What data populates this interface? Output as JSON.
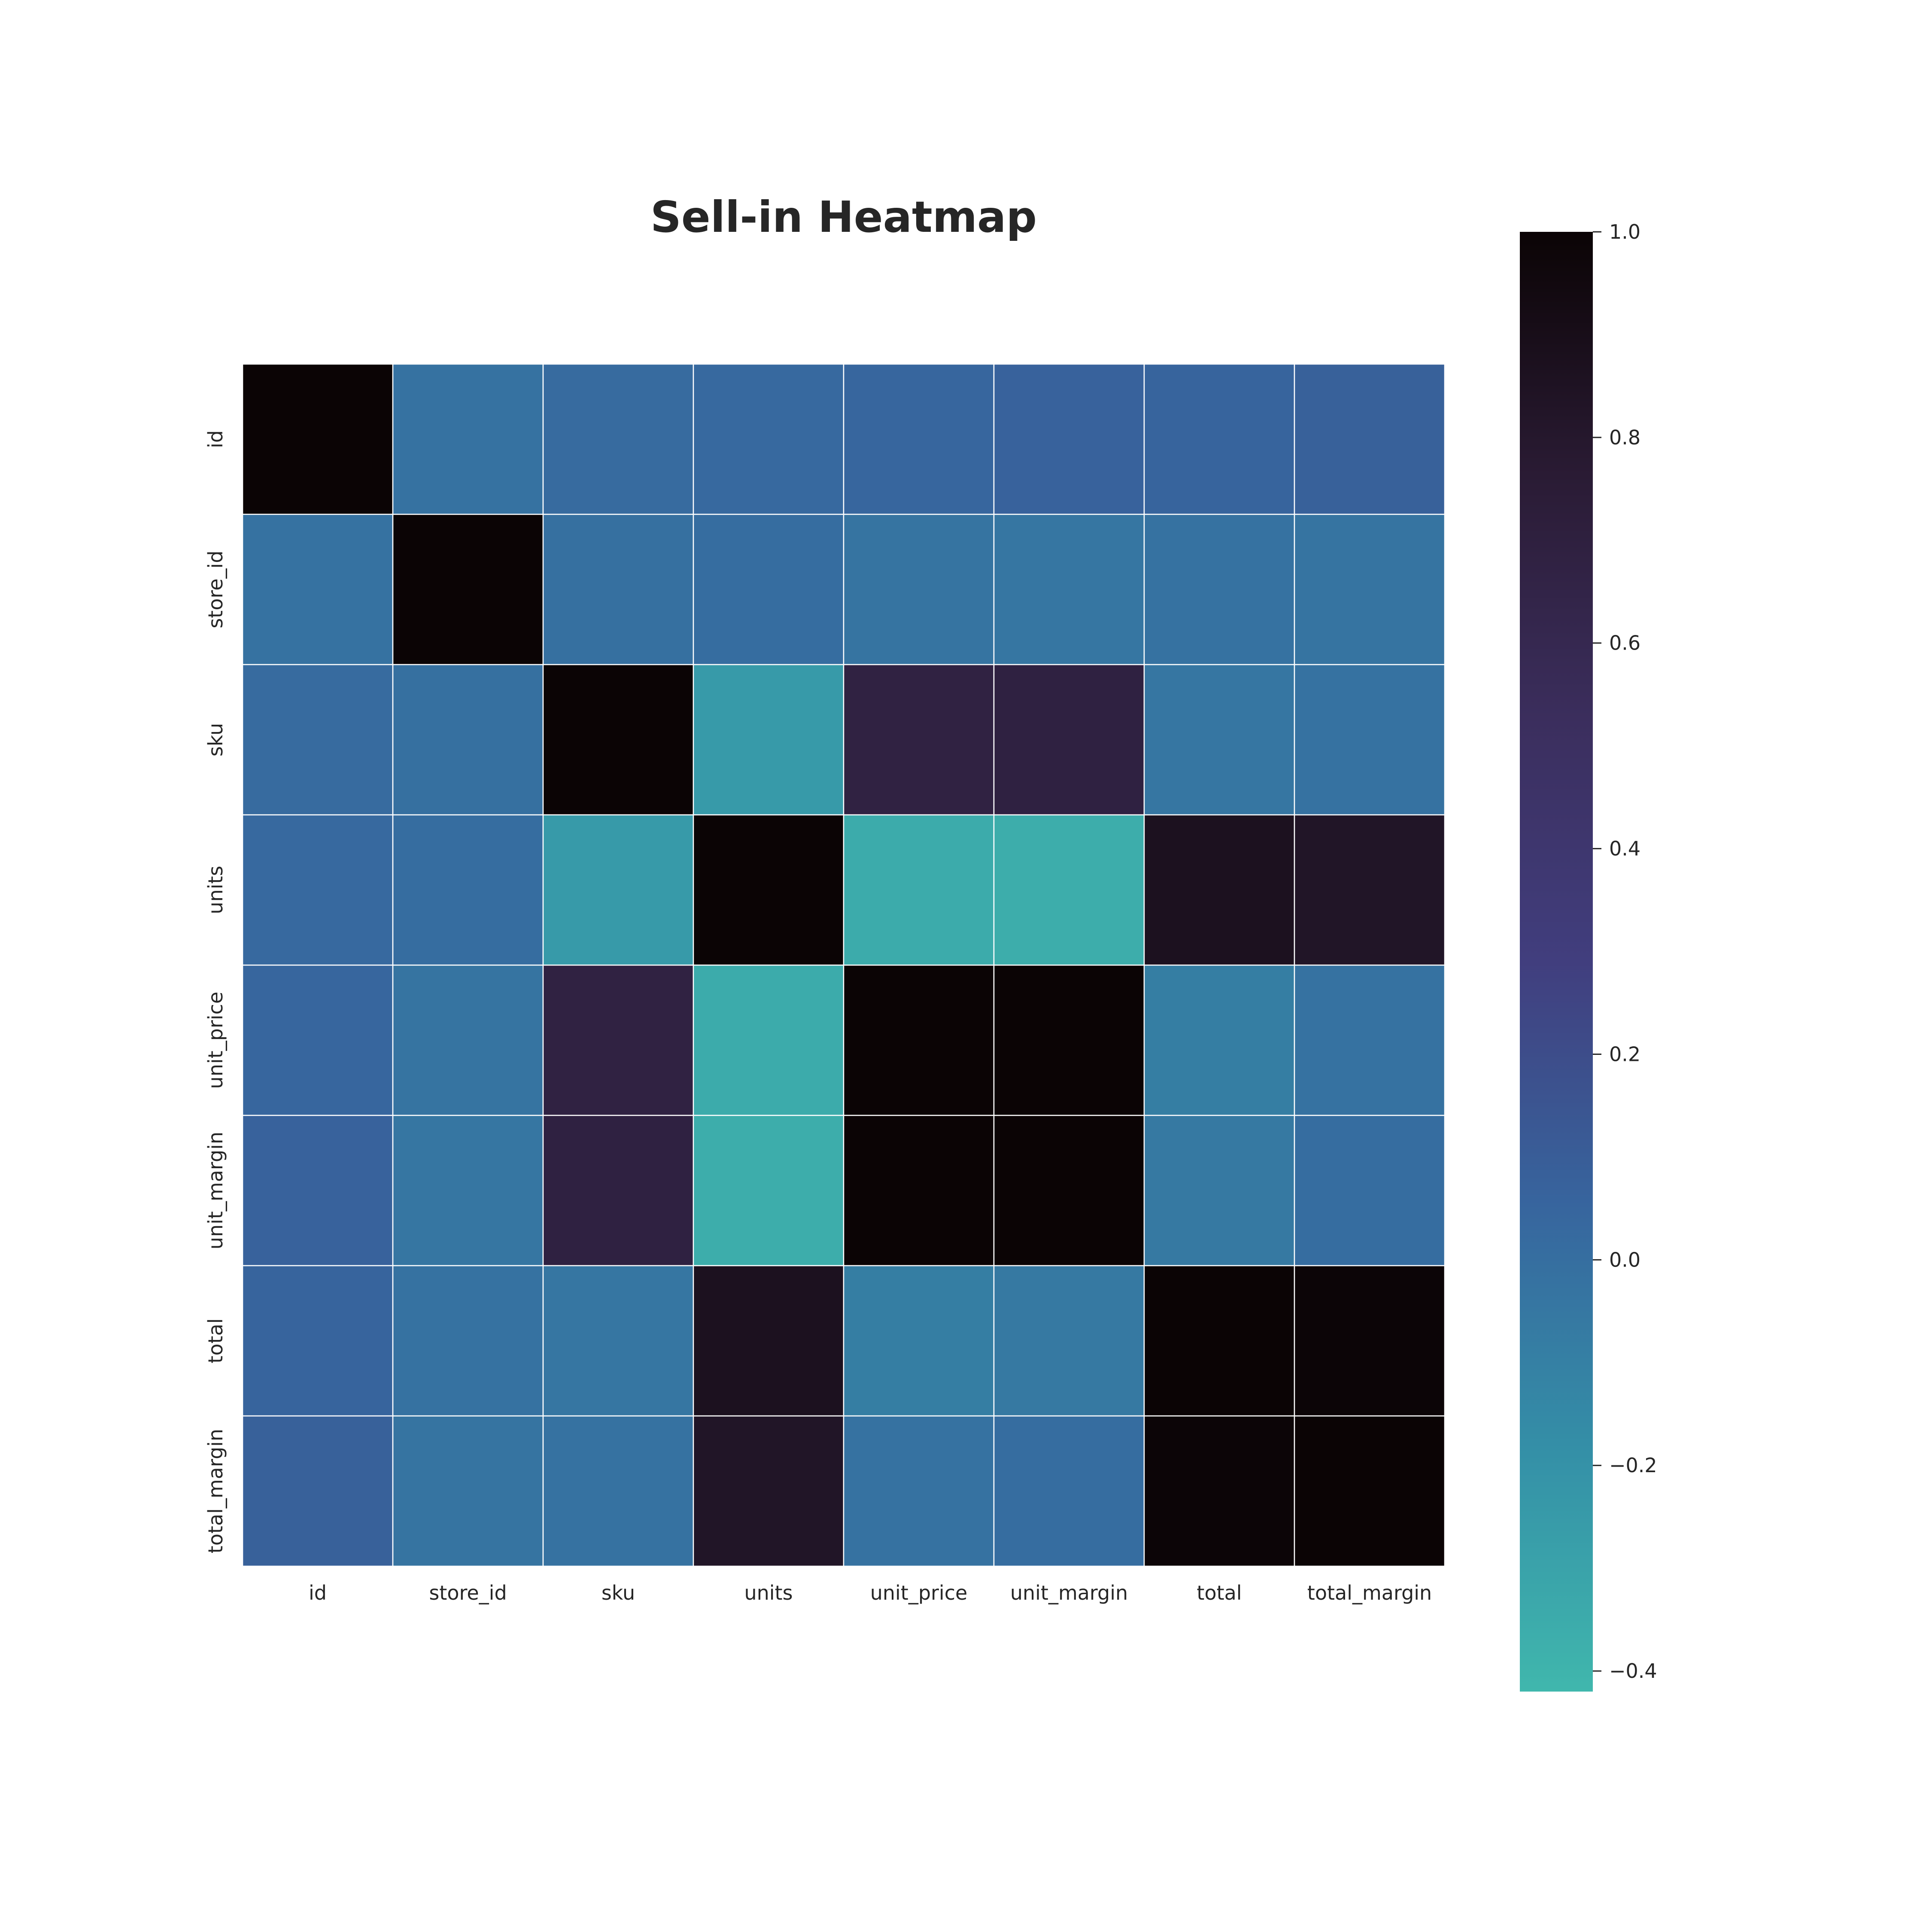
{
  "chart_data": {
    "type": "heatmap",
    "title": "Sell-in Heatmap",
    "xlabel": "",
    "ylabel": "",
    "columns": [
      "id",
      "store_id",
      "sku",
      "units",
      "unit_price",
      "unit_margin",
      "total",
      "total_margin"
    ],
    "rows": [
      "id",
      "store_id",
      "sku",
      "units",
      "unit_price",
      "unit_margin",
      "total",
      "total_margin"
    ],
    "values": [
      [
        1.0,
        -0.02,
        0.02,
        0.03,
        0.05,
        0.07,
        0.06,
        0.08
      ],
      [
        -0.02,
        1.0,
        -0.01,
        0.01,
        -0.03,
        -0.04,
        -0.02,
        -0.03
      ],
      [
        0.02,
        -0.01,
        1.0,
        -0.25,
        0.68,
        0.69,
        -0.04,
        -0.02
      ],
      [
        0.03,
        0.01,
        -0.25,
        1.0,
        -0.35,
        -0.36,
        0.87,
        0.83
      ],
      [
        0.05,
        -0.03,
        0.68,
        -0.35,
        1.0,
        1.0,
        -0.09,
        -0.02
      ],
      [
        0.07,
        -0.04,
        0.69,
        -0.36,
        1.0,
        1.0,
        -0.06,
        0.01
      ],
      [
        0.06,
        -0.02,
        -0.04,
        0.87,
        -0.09,
        -0.06,
        1.0,
        0.99
      ],
      [
        0.08,
        -0.03,
        -0.02,
        0.83,
        -0.02,
        0.01,
        0.99,
        1.0
      ]
    ],
    "colorbar": {
      "range": [
        -0.42,
        1.0
      ],
      "ticks": [
        1.0,
        0.8,
        0.6,
        0.4,
        0.2,
        0.0,
        -0.2,
        -0.4
      ],
      "tick_labels": [
        "1.0",
        "0.8",
        "0.6",
        "0.4",
        "0.2",
        "0.0",
        "−0.2",
        "−0.4"
      ],
      "colormap": "mako_r",
      "colors": [
        "#40b7ad",
        "#348fa7",
        "#37659e",
        "#413e7e",
        "#3b2e5d",
        "#2a1b34",
        "#0b0405"
      ]
    },
    "grid_lines": true,
    "legend": "colorbar-right"
  }
}
